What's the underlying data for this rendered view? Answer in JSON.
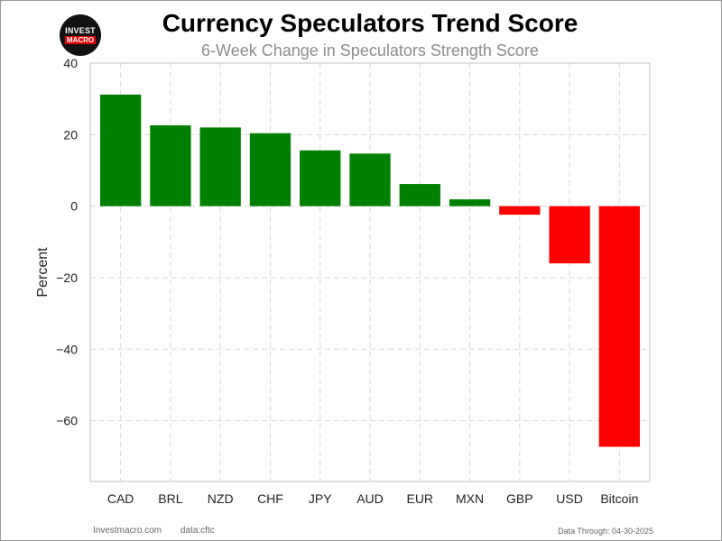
{
  "logo": {
    "line1": "INVEST",
    "line2": "MACRO"
  },
  "footer": {
    "site": "Investmacro.com",
    "source": "data:cftc",
    "data_through": "Data Through: 04-30-2025"
  },
  "colors": {
    "positive": "#008000",
    "negative": "#ff0000",
    "grid": "#d9d9d9",
    "subtitle": "#8c8c8c"
  },
  "chart_data": {
    "type": "bar",
    "title": "Currency Speculators Trend Score",
    "subtitle": "6-Week Change in Speculators Strength Score",
    "xlabel": "",
    "ylabel": "Percent",
    "categories": [
      "CAD",
      "BRL",
      "NZD",
      "CHF",
      "JPY",
      "AUD",
      "EUR",
      "MXN",
      "GBP",
      "USD",
      "Bitcoin"
    ],
    "values": [
      31.2,
      22.6,
      22.0,
      20.4,
      15.6,
      14.7,
      6.2,
      1.9,
      -2.4,
      -16.0,
      -67.3
    ],
    "ylim": [
      -77,
      40
    ],
    "yticks": [
      40,
      20,
      0,
      -20,
      -40,
      -60
    ],
    "ytick_labels": [
      "40",
      "20",
      "0",
      "−20",
      "−40",
      "−60"
    ],
    "grid": true
  }
}
